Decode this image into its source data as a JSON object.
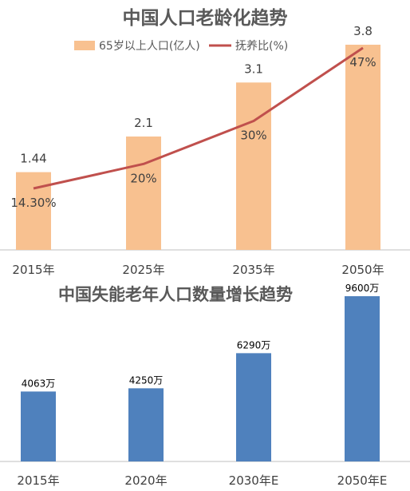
{
  "colors": {
    "bar_top": "#F8C190",
    "line_top": "#C0504D",
    "bar_bottom": "#4F81BD",
    "title": "#595959",
    "axis": "#BFBFBF"
  },
  "chart_data": [
    {
      "type": "bar",
      "title": "中国人口老龄化趋势",
      "categories": [
        "2015年",
        "2025年",
        "2035年",
        "2050年"
      ],
      "series": [
        {
          "name": "65岁以上人口(亿人)",
          "kind": "bar",
          "values": [
            1.44,
            2.1,
            3.1,
            3.8
          ],
          "labels": [
            "1.44",
            "2.1",
            "3.1",
            "3.8"
          ]
        },
        {
          "name": "抚养比(%)",
          "kind": "line",
          "values": [
            14.3,
            20,
            30,
            47
          ],
          "labels": [
            "14.30%",
            "20%",
            "30%",
            "47%"
          ]
        }
      ],
      "ylim": [
        0,
        3.8
      ],
      "y2lim": [
        0,
        47
      ],
      "legend": "top",
      "grid": false
    },
    {
      "type": "bar",
      "title": "中国失能老年人口数量增长趋势",
      "categories": [
        "2015年",
        "2020年",
        "2030年E",
        "2050年E"
      ],
      "series": [
        {
          "kind": "bar",
          "values": [
            4063,
            4250,
            6290,
            9600
          ],
          "labels": [
            "4063万",
            "4250万",
            "6290万",
            "9600万"
          ]
        }
      ],
      "ylim": [
        0,
        9600
      ],
      "grid": false
    }
  ]
}
